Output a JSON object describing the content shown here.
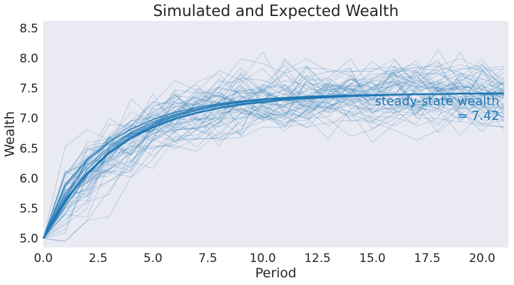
{
  "chart_data": {
    "type": "line",
    "title": "Simulated and Expected Wealth",
    "xlabel": "Period",
    "ylabel": "Wealth",
    "xlim": [
      0,
      21.2
    ],
    "ylim": [
      4.85,
      8.62
    ],
    "grid": false,
    "background": "#eaeaf2",
    "line_color": "#1f77b4",
    "x_ticks": [
      "0.0",
      "2.5",
      "5.0",
      "7.5",
      "10.0",
      "12.5",
      "15.0",
      "17.5",
      "20.0"
    ],
    "y_ticks": [
      "5.0",
      "5.5",
      "6.0",
      "6.5",
      "7.0",
      "7.5",
      "8.0",
      "8.5"
    ],
    "expected_path": {
      "x": [
        0,
        1,
        2,
        3,
        4,
        5,
        6,
        7,
        8,
        9,
        10,
        11,
        12,
        13,
        14,
        15,
        16,
        17,
        18,
        19,
        20,
        21
      ],
      "values": [
        5.0,
        5.63,
        6.08,
        6.42,
        6.67,
        6.85,
        6.99,
        7.09,
        7.17,
        7.23,
        7.27,
        7.31,
        7.33,
        7.35,
        7.37,
        7.38,
        7.39,
        7.4,
        7.4,
        7.41,
        7.41,
        7.41
      ]
    },
    "simulations": {
      "count": 60,
      "x": [
        0,
        1,
        2,
        3,
        4,
        5,
        6,
        7,
        8,
        9,
        10,
        11,
        12,
        13,
        14,
        15,
        16,
        17,
        18,
        19,
        20,
        21
      ],
      "start": 5.0,
      "opacity": 0.25,
      "typical_spread": [
        0.0,
        0.45,
        0.35,
        0.33,
        0.32,
        0.32,
        0.32,
        0.33,
        0.33,
        0.33,
        0.34,
        0.34,
        0.34,
        0.34,
        0.34,
        0.34,
        0.34,
        0.34,
        0.34,
        0.34,
        0.34,
        0.34
      ]
    },
    "annotation": {
      "line1": "steady-state wealth",
      "line2": "= 7.42"
    }
  }
}
